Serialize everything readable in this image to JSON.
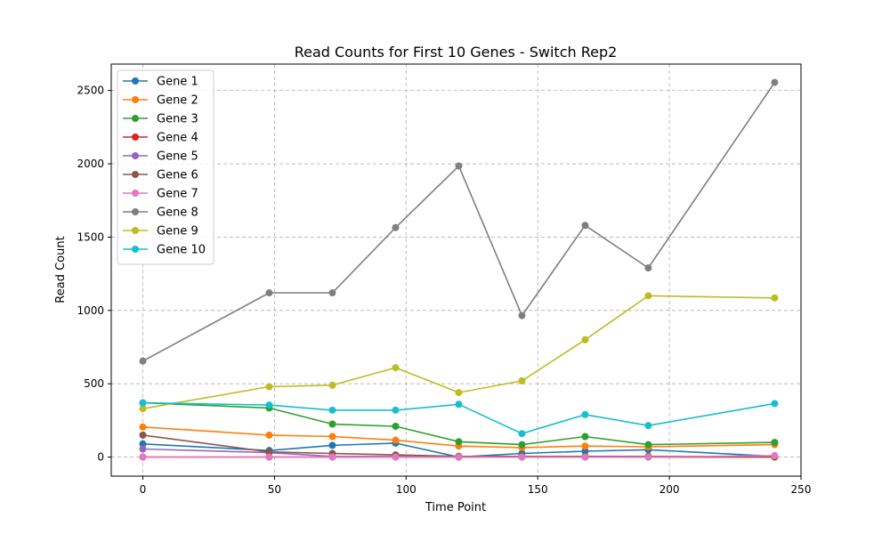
{
  "chart_data": {
    "type": "line",
    "title": "Read Counts for First 10 Genes - Switch Rep2",
    "xlabel": "Time Point",
    "ylabel": "Read Count",
    "xlim": [
      -12,
      250
    ],
    "ylim": [
      -130,
      2680
    ],
    "xticks": [
      0,
      50,
      100,
      150,
      200,
      250
    ],
    "yticks": [
      0,
      500,
      1000,
      1500,
      2000,
      2500
    ],
    "grid": true,
    "legend_position": "top-left",
    "x": [
      0,
      48,
      72,
      96,
      120,
      144,
      168,
      192,
      240
    ],
    "series": [
      {
        "name": "Gene 1",
        "color": "#1f77b4",
        "values": [
          90,
          45,
          80,
          95,
          0,
          25,
          40,
          50,
          5
        ]
      },
      {
        "name": "Gene 2",
        "color": "#ff7f0e",
        "values": [
          205,
          150,
          140,
          115,
          75,
          65,
          75,
          70,
          85
        ]
      },
      {
        "name": "Gene 3",
        "color": "#2ca02c",
        "values": [
          370,
          335,
          225,
          210,
          105,
          85,
          140,
          85,
          100
        ]
      },
      {
        "name": "Gene 4",
        "color": "#d62728",
        "values": [
          0,
          0,
          0,
          0,
          0,
          0,
          0,
          0,
          0
        ]
      },
      {
        "name": "Gene 5",
        "color": "#9467bd",
        "values": [
          55,
          30,
          5,
          5,
          5,
          5,
          5,
          5,
          5
        ]
      },
      {
        "name": "Gene 6",
        "color": "#8c564b",
        "values": [
          150,
          35,
          25,
          15,
          5,
          5,
          5,
          5,
          5
        ]
      },
      {
        "name": "Gene 7",
        "color": "#e377c2",
        "values": [
          0,
          0,
          0,
          0,
          0,
          0,
          0,
          0,
          10
        ]
      },
      {
        "name": "Gene 8",
        "color": "#7f7f7f",
        "values": [
          655,
          1120,
          1120,
          1565,
          1985,
          965,
          1580,
          1290,
          2555
        ]
      },
      {
        "name": "Gene 9",
        "color": "#bcbd22",
        "values": [
          330,
          480,
          490,
          610,
          440,
          520,
          800,
          1100,
          1085
        ]
      },
      {
        "name": "Gene 10",
        "color": "#17becf",
        "values": [
          370,
          355,
          320,
          320,
          360,
          160,
          290,
          215,
          365
        ]
      }
    ]
  }
}
